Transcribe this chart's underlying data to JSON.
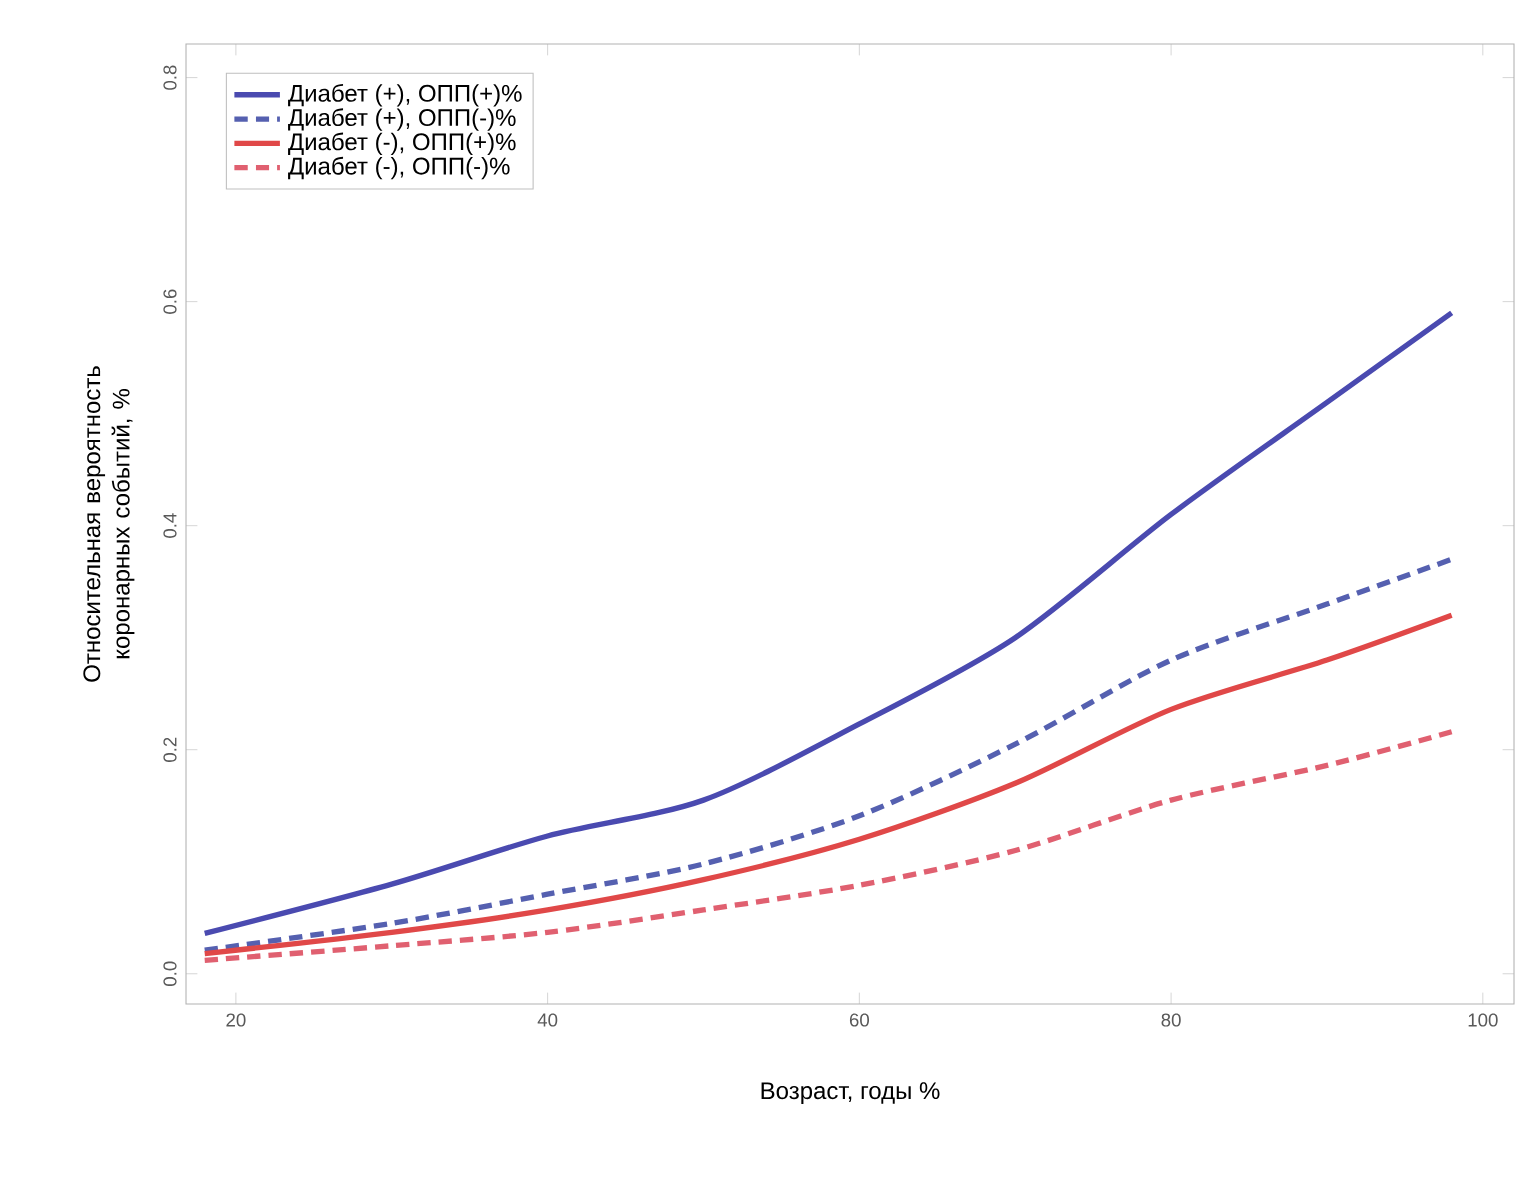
{
  "chart_data": {
    "type": "line",
    "xlabel": "Возраст, годы %",
    "ylabel": "Относительная вероятность коронарных событий, %",
    "x": [
      18,
      30,
      40,
      50,
      60,
      70,
      80,
      90,
      98
    ],
    "series": [
      {
        "name": "Диабет (+), ОПП(+)%",
        "color": "#4a4ab0",
        "line_style": "solid",
        "values": [
          0.036,
          0.08,
          0.123,
          0.155,
          0.223,
          0.3,
          0.41,
          0.51,
          0.59
        ]
      },
      {
        "name": "Диабет (+), ОПП(-)%",
        "color": "#5560b0",
        "line_style": "dashed",
        "values": [
          0.021,
          0.045,
          0.071,
          0.098,
          0.141,
          0.205,
          0.28,
          0.33,
          0.37
        ]
      },
      {
        "name": "Диабет (-), ОПП(+)%",
        "color": "#e04848",
        "line_style": "solid",
        "values": [
          0.018,
          0.037,
          0.057,
          0.084,
          0.12,
          0.17,
          0.236,
          0.28,
          0.32
        ]
      },
      {
        "name": "Диабет (-), ОПП(-)%",
        "color": "#e06070",
        "line_style": "dashed",
        "values": [
          0.012,
          0.025,
          0.037,
          0.057,
          0.079,
          0.11,
          0.155,
          0.186,
          0.216
        ]
      }
    ],
    "xlim": [
      16.8,
      102
    ],
    "ylim": [
      -0.027,
      0.83
    ],
    "xticks": [
      20,
      40,
      60,
      80,
      100
    ],
    "yticks": [
      {
        "value": 0,
        "label": "0.0"
      },
      {
        "value": 0.2,
        "label": "0.2"
      },
      {
        "value": 0.4,
        "label": "0.4"
      },
      {
        "value": 0.6,
        "label": "0.6"
      },
      {
        "value": 0.8,
        "label": "0.8"
      }
    ],
    "legend": "top left",
    "marker": "none",
    "grid": false
  }
}
